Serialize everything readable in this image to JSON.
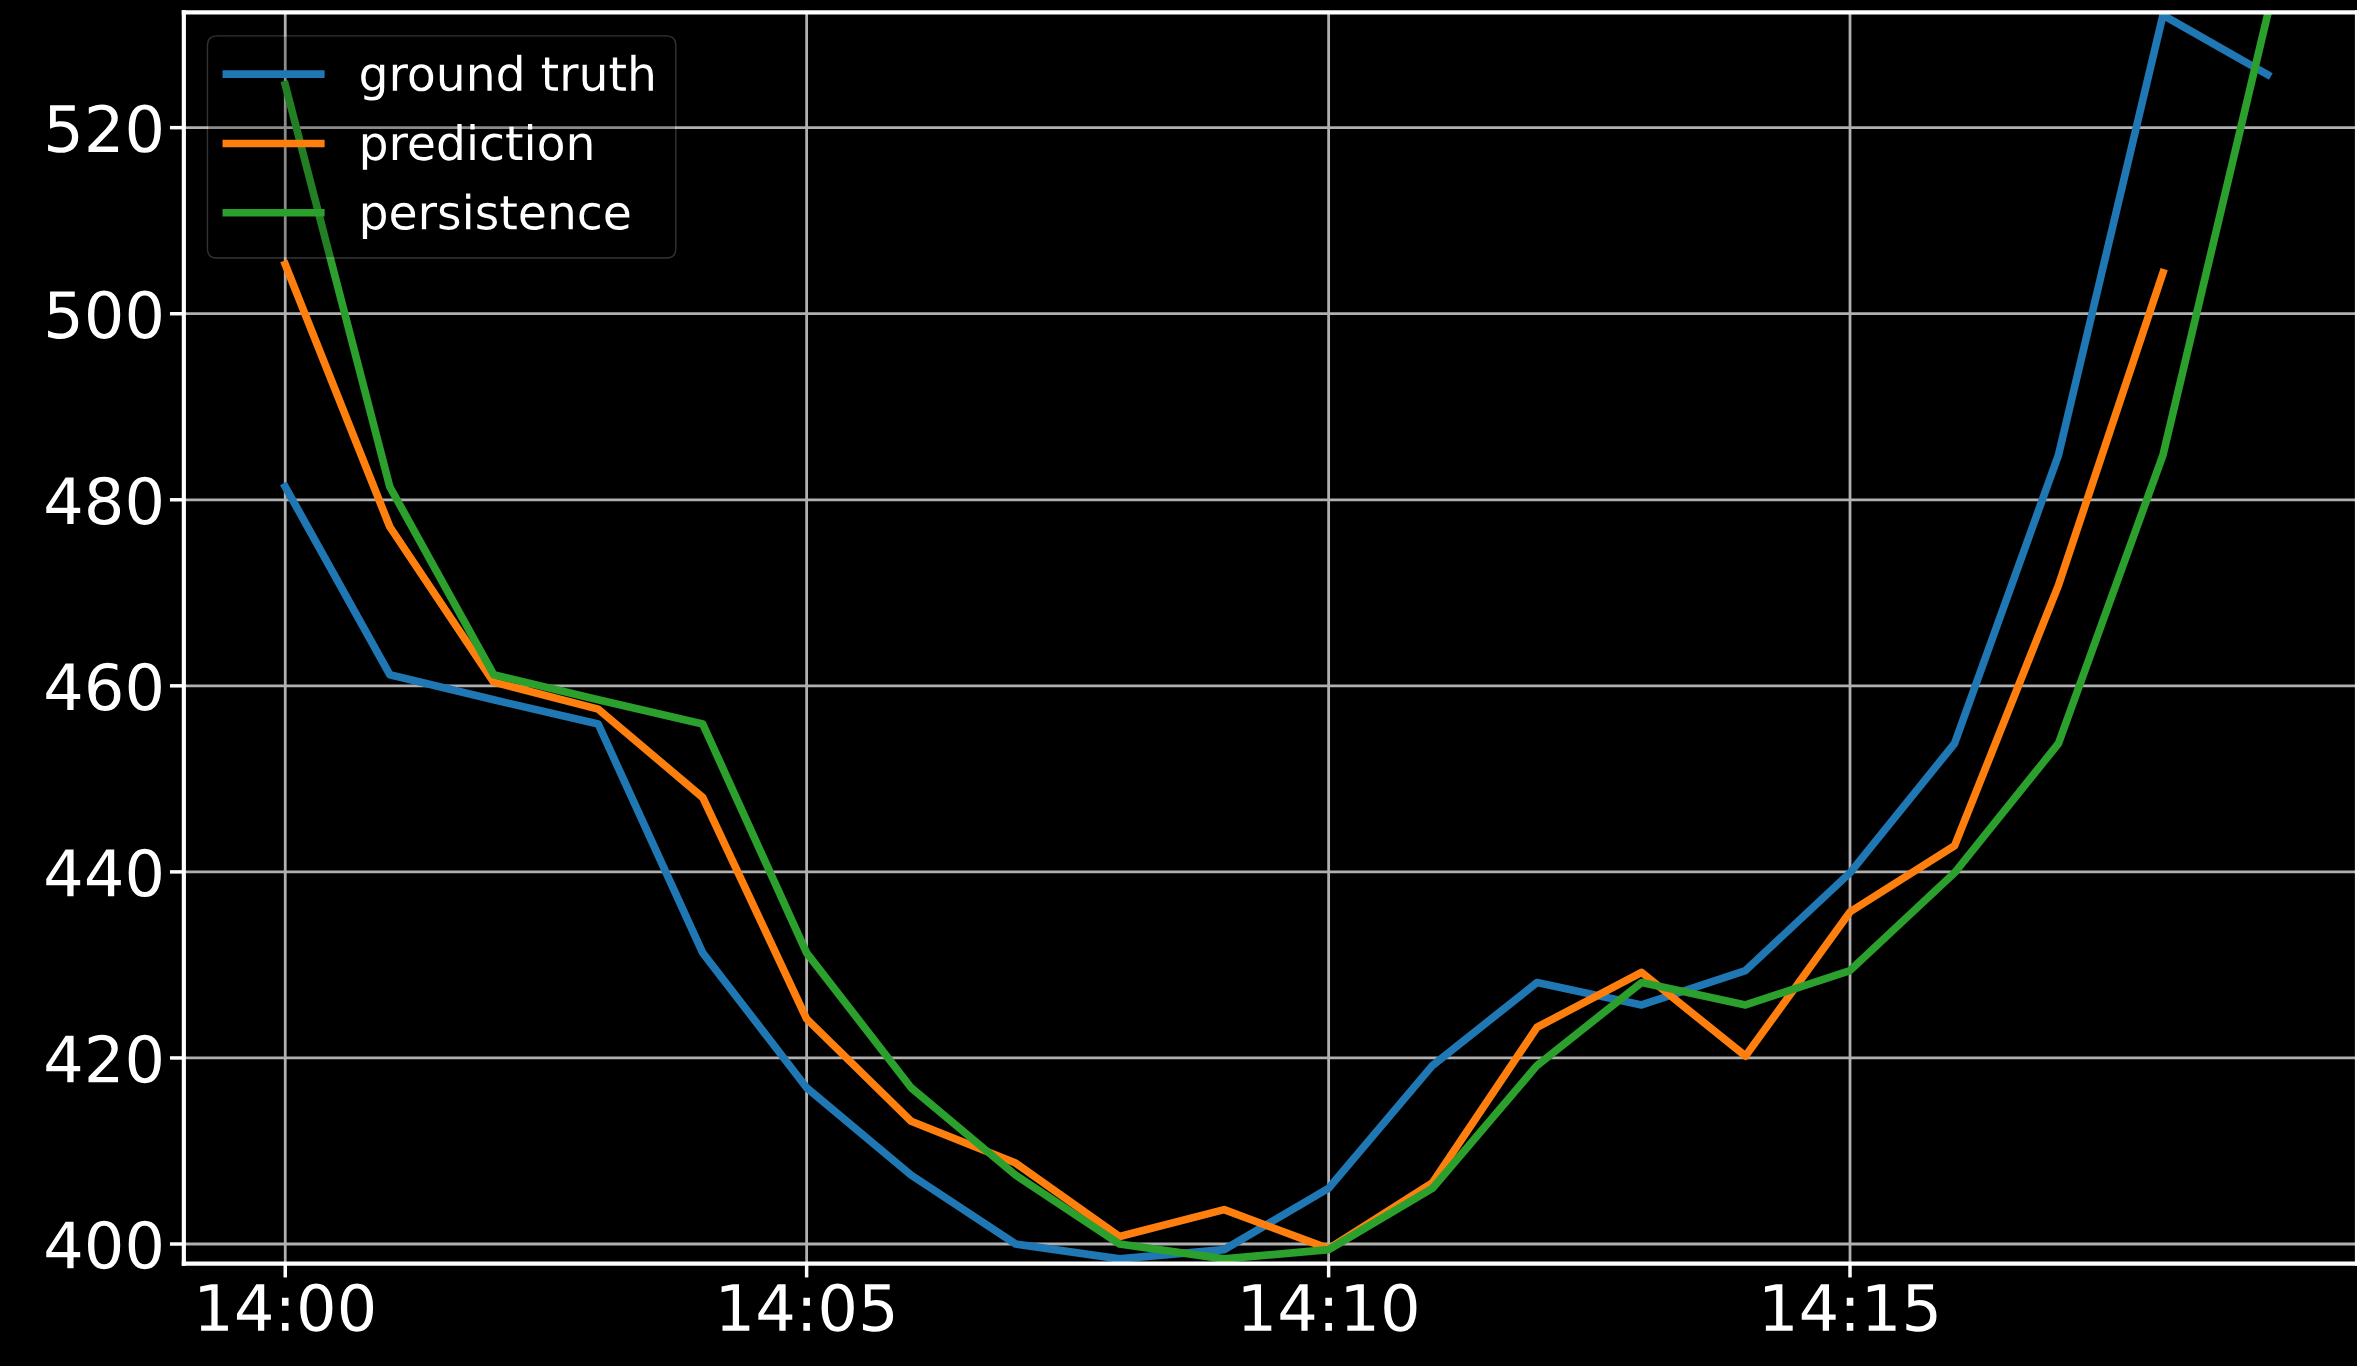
{
  "chart_data": {
    "type": "line",
    "x": [
      14.0,
      14.0167,
      14.0333,
      14.05,
      14.0667,
      14.0833,
      14.1,
      14.1167,
      14.1333,
      14.15,
      14.1667,
      14.1833,
      14.2,
      14.2167,
      14.2333,
      14.25,
      14.2667,
      14.2833,
      14.3,
      14.3167
    ],
    "series": [
      {
        "name": "ground truth",
        "color": "#1f77b4",
        "values": [
          481.4,
          461.2,
          458.5,
          455.9,
          431.3,
          416.8,
          407.4,
          400.0,
          398.4,
          399.4,
          406.0,
          419.2,
          428.1,
          425.7,
          429.4,
          439.9,
          453.8,
          484.8,
          532.1,
          525.7
        ]
      },
      {
        "name": "prediction",
        "color": "#ff7f0e",
        "values": [
          505.3,
          477.1,
          460.4,
          457.5,
          448.0,
          424.2,
          413.2,
          408.7,
          400.8,
          403.7,
          399.5,
          406.6,
          423.3,
          429.2,
          420.2,
          435.7,
          442.8,
          470.8,
          504.4,
          null
        ]
      },
      {
        "name": "persistence",
        "color": "#2ca02c",
        "values": [
          524.6,
          481.4,
          461.2,
          458.5,
          455.9,
          431.3,
          416.8,
          407.4,
          400.0,
          398.4,
          399.4,
          406.0,
          419.2,
          428.1,
          425.7,
          429.4,
          439.9,
          453.8,
          484.8,
          532.1
        ]
      }
    ],
    "xlim": [
      13.9838,
      14.331
    ],
    "ylim": [
      397.9,
      532.4
    ],
    "xticks": [
      {
        "value": 14.0,
        "label": "14:00"
      },
      {
        "value": 14.0833,
        "label": "14:05"
      },
      {
        "value": 14.1667,
        "label": "14:10"
      },
      {
        "value": 14.25,
        "label": "14:15"
      }
    ],
    "yticks": [
      400,
      420,
      440,
      460,
      480,
      500,
      520
    ],
    "grid": true,
    "legend": "top left",
    "marker": "none",
    "line_style": "solid"
  }
}
